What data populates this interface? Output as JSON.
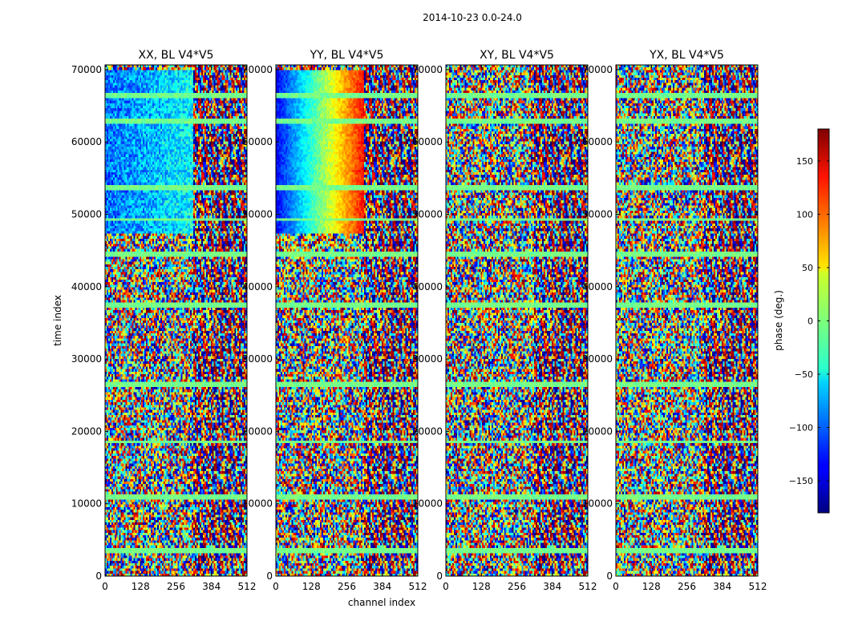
{
  "chart_data": {
    "type": "heatmap",
    "suptitle": "2014-10-23 0.0-24.0",
    "xlabel": "channel index",
    "ylabel": "time index",
    "xlim": [
      0,
      512
    ],
    "ylim": [
      0,
      70656
    ],
    "xticks": [
      "0",
      "128",
      "256",
      "384",
      "512"
    ],
    "xtick_values": [
      0,
      128,
      256,
      384,
      512
    ],
    "yticks": [
      "0",
      "10000",
      "20000",
      "30000",
      "40000",
      "50000",
      "60000",
      "70000"
    ],
    "ytick_values": [
      0,
      10000,
      20000,
      30000,
      40000,
      50000,
      60000,
      70000
    ],
    "panels": [
      {
        "title": "XX, BL V4*V5",
        "pol": "XX"
      },
      {
        "title": "YY, BL V4*V5",
        "pol": "YY"
      },
      {
        "title": "XY, BL V4*V5",
        "pol": "XY"
      },
      {
        "title": "YX, BL V4*V5",
        "pol": "YX"
      }
    ],
    "colorbar": {
      "label": "phase (deg.)",
      "range": [
        -180,
        180
      ],
      "ticks": [
        "−150",
        "−100",
        "−50",
        "0",
        "50",
        "100",
        "150"
      ],
      "tick_values": [
        -150,
        -100,
        -50,
        0,
        50,
        100,
        150
      ],
      "colormap": "jet"
    },
    "features": {
      "phase_coherent_block_time": [
        47500,
        70000
      ],
      "flagged_row_times": [
        49300,
        62800,
        66500,
        53600,
        44500,
        37500,
        26500,
        18500,
        11000,
        3500
      ]
    }
  }
}
